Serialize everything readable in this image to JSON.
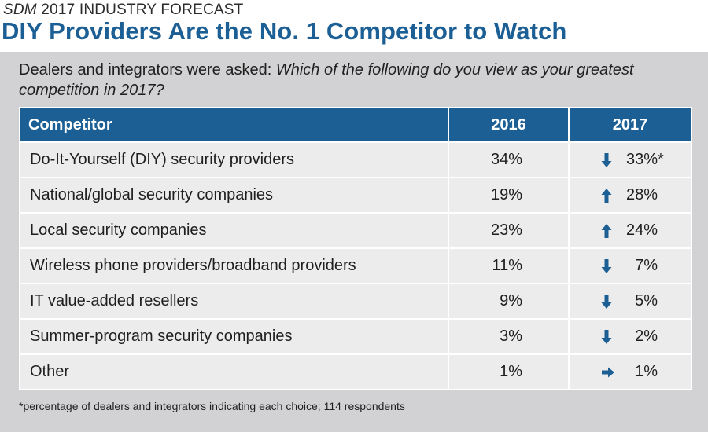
{
  "header": {
    "publication": "SDM",
    "kicker_rest": " 2017 INDUSTRY FORECAST",
    "title": "DIY Providers Are the No. 1 Competitor to Watch"
  },
  "question": {
    "intro": "Dealers and integrators were asked: ",
    "text": "Which of the following do you view as your greatest competition in 2017?"
  },
  "footnote": "*percentage of dealers and integrators indicating each choice; 114 respondents",
  "colors": {
    "accent": "#1c5f95",
    "panel": "#d2d2d4",
    "row": "#ececec"
  },
  "chart_data": {
    "type": "table",
    "columns": [
      "Competitor",
      "2016",
      "2017"
    ],
    "rows": [
      {
        "name": "Do-It-Yourself (DIY) security providers",
        "y2016": "34%",
        "y2017": "33%",
        "flag": "*",
        "trend": "down"
      },
      {
        "name": "National/global security companies",
        "y2016": "19%",
        "y2017": "28%",
        "flag": "",
        "trend": "up"
      },
      {
        "name": "Local security companies",
        "y2016": "23%",
        "y2017": "24%",
        "flag": "",
        "trend": "up"
      },
      {
        "name": "Wireless phone providers/broadband providers",
        "y2016": "11%",
        "y2017": "7%",
        "flag": "",
        "trend": "down"
      },
      {
        "name": "IT value-added resellers",
        "y2016": "9%",
        "y2017": "5%",
        "flag": "",
        "trend": "down"
      },
      {
        "name": "Summer-program security companies",
        "y2016": "3%",
        "y2017": "2%",
        "flag": "",
        "trend": "down"
      },
      {
        "name": "Other",
        "y2016": "1%",
        "y2017": "1%",
        "flag": "",
        "trend": "flat"
      }
    ]
  }
}
